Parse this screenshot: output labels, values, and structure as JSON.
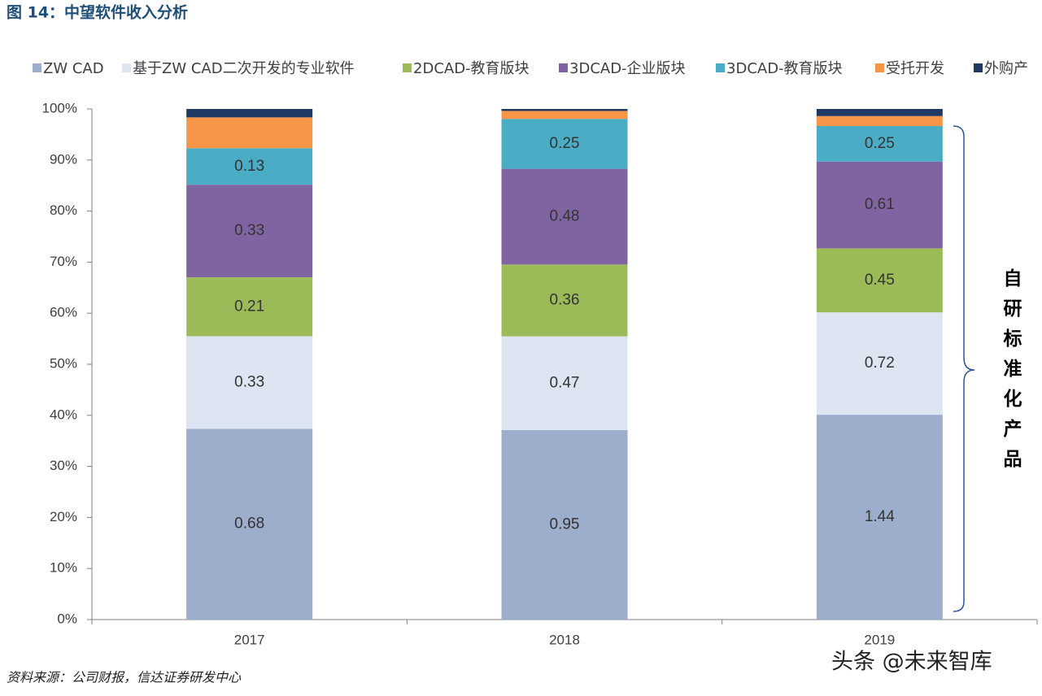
{
  "header": {
    "title": "图 14：中望软件收入分析"
  },
  "chart_data": {
    "type": "bar",
    "stacked": "percent",
    "categories": [
      "2017",
      "2018",
      "2019"
    ],
    "series": [
      {
        "name": "ZW CAD",
        "color": "#9dadcc",
        "values": [
          0.68,
          0.95,
          1.44
        ],
        "show_labels": true
      },
      {
        "name": "基于ZW CAD二次开发的专业软件",
        "color": "#dce5f1",
        "values": [
          0.33,
          0.47,
          0.72
        ],
        "show_labels": true
      },
      {
        "name": "2DCAD-教育版块",
        "color": "#9bbb59",
        "values": [
          0.21,
          0.36,
          0.45
        ],
        "show_labels": true
      },
      {
        "name": "3DCAD-企业版块",
        "color": "#8064a2",
        "values": [
          0.33,
          0.48,
          0.61
        ],
        "show_labels": true
      },
      {
        "name": "3DCAD-教育版块",
        "color": "#4bacc6",
        "values": [
          0.13,
          0.25,
          0.25
        ],
        "show_labels": true
      },
      {
        "name": "受托开发",
        "color": "#f79646",
        "values": [
          0.11,
          0.04,
          0.07
        ],
        "show_labels": false
      },
      {
        "name": "外购产",
        "color": "#1f3864",
        "values": [
          0.03,
          0.01,
          0.05
        ],
        "show_labels": false
      }
    ],
    "ylim": [
      0,
      100
    ],
    "yticks": [
      {
        "value": 0,
        "label": "0%"
      },
      {
        "value": 10,
        "label": "10%"
      },
      {
        "value": 20,
        "label": "20%"
      },
      {
        "value": 30,
        "label": "30%"
      },
      {
        "value": 40,
        "label": "40%"
      },
      {
        "value": 50,
        "label": "50%"
      },
      {
        "value": 60,
        "label": "60%"
      },
      {
        "value": 70,
        "label": "70%"
      },
      {
        "value": 80,
        "label": "80%"
      },
      {
        "value": 90,
        "label": "90%"
      },
      {
        "value": 100,
        "label": "100%"
      }
    ],
    "annotation": "自研标准化产品"
  },
  "footer": {
    "source": "资料来源：公司财报，信达证券研发中心",
    "watermark": "头条 @未来智库"
  }
}
